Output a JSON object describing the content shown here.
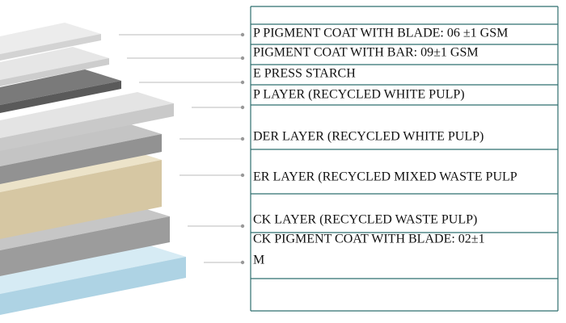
{
  "layers": [
    {
      "lines": [
        "P PIGMENT COAT WITH BLADE: 06 ±1 GSM"
      ]
    },
    {
      "lines": [
        "PIGMENT COAT WITH BAR: 09±1 GSM"
      ]
    },
    {
      "lines": [
        "E PRESS STARCH"
      ]
    },
    {
      "lines": [
        "P LAYER (RECYCLED WHITE PULP)"
      ]
    },
    {
      "lines": [
        "DER LAYER (RECYCLED WHITE PULP)"
      ]
    },
    {
      "lines": [
        "ER LAYER (RECYCLED MIXED WASTE PULP"
      ]
    },
    {
      "lines": [
        "CK LAYER (RECYCLED WASTE PULP)"
      ]
    },
    {
      "lines": [
        "CK PIGMENT COAT WITH BLADE: 02±1",
        "M"
      ]
    }
  ]
}
